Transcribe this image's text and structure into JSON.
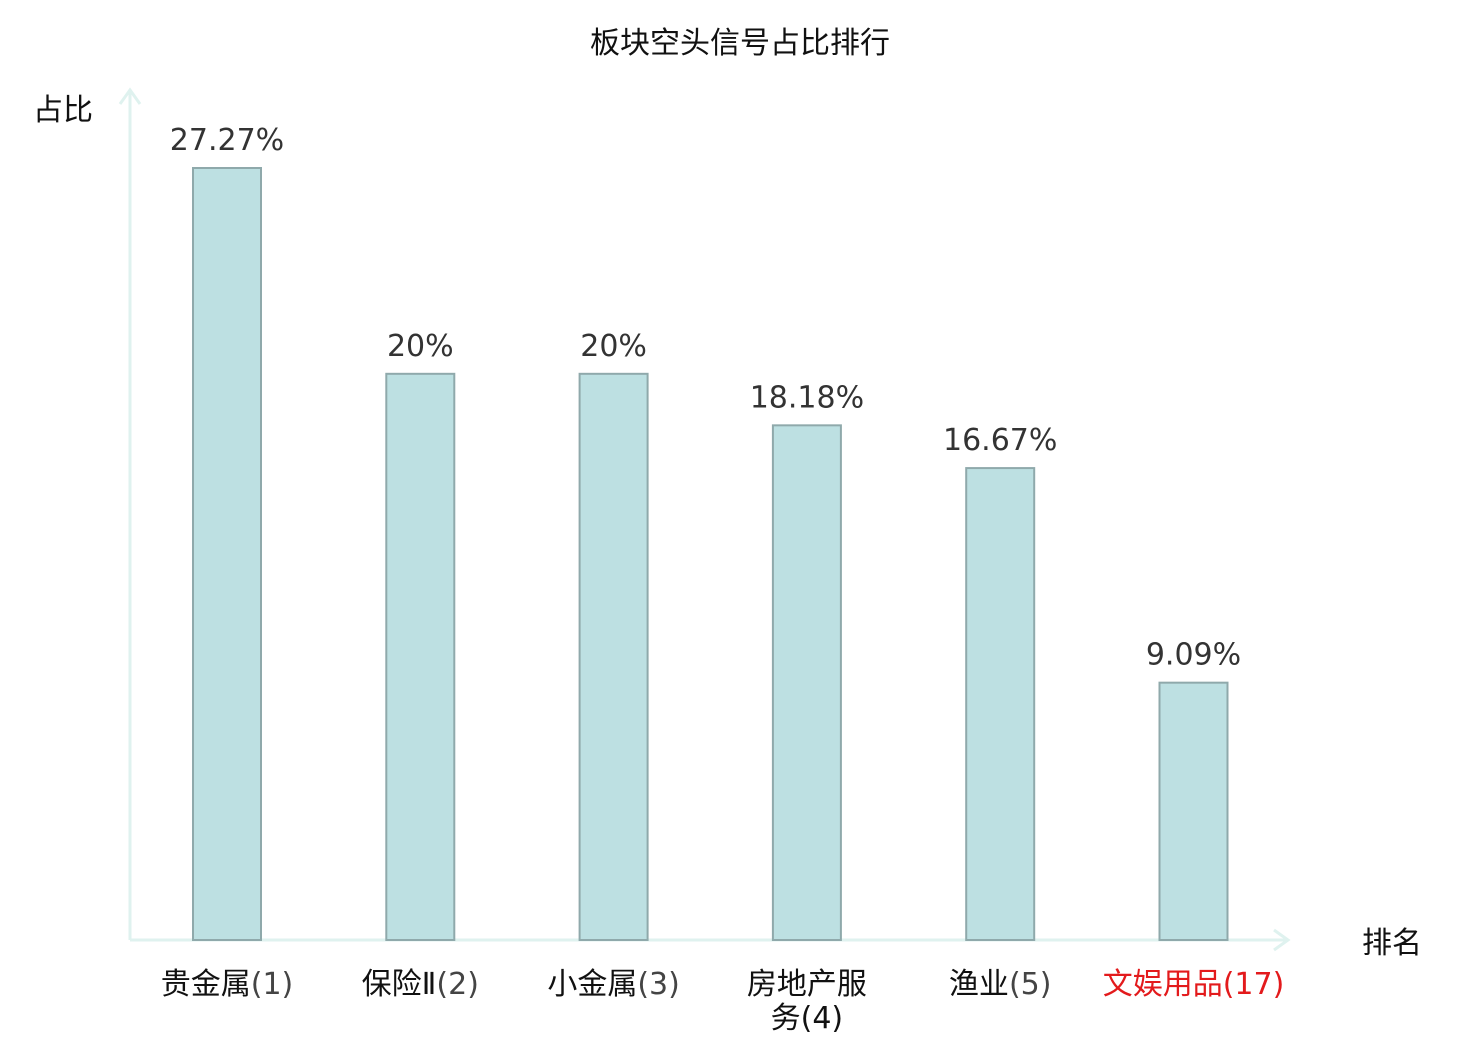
{
  "chart_data": {
    "type": "bar",
    "title": "板块空头信号占比排行",
    "xlabel": "排名",
    "ylabel": "占比",
    "ylim": [
      0,
      30
    ],
    "grid": false,
    "legend": "none",
    "value_unit": "%",
    "categories": [
      {
        "lines": [
          "贵金属(1)"
        ],
        "name": "贵金属",
        "rank": "(1)",
        "highlight": false
      },
      {
        "lines": [
          "保险Ⅱ(2)"
        ],
        "name": "保险Ⅱ",
        "rank": "(2)",
        "highlight": false
      },
      {
        "lines": [
          "小金属(3)"
        ],
        "name": "小金属",
        "rank": "(3)",
        "highlight": false
      },
      {
        "lines": [
          "房地产服",
          "务(4)"
        ],
        "name": "房地产服务",
        "rank": "(4)",
        "highlight": false
      },
      {
        "lines": [
          "渔业(5)"
        ],
        "name": "渔业",
        "rank": "(5)",
        "highlight": false
      },
      {
        "lines": [
          "文娱用品(17)"
        ],
        "name": "文娱用品",
        "rank": "(17)",
        "highlight": true
      }
    ],
    "values": [
      27.27,
      20,
      20,
      18.18,
      16.67,
      9.09
    ],
    "value_labels": [
      "27.27%",
      "20%",
      "20%",
      "18.18%",
      "16.67%",
      "9.09%"
    ],
    "colors": {
      "bar_fill": "#bde0e2",
      "bar_stroke": "#8fa9ab",
      "axis": "#dff2ef",
      "highlight_text": "#e31a1c"
    }
  }
}
